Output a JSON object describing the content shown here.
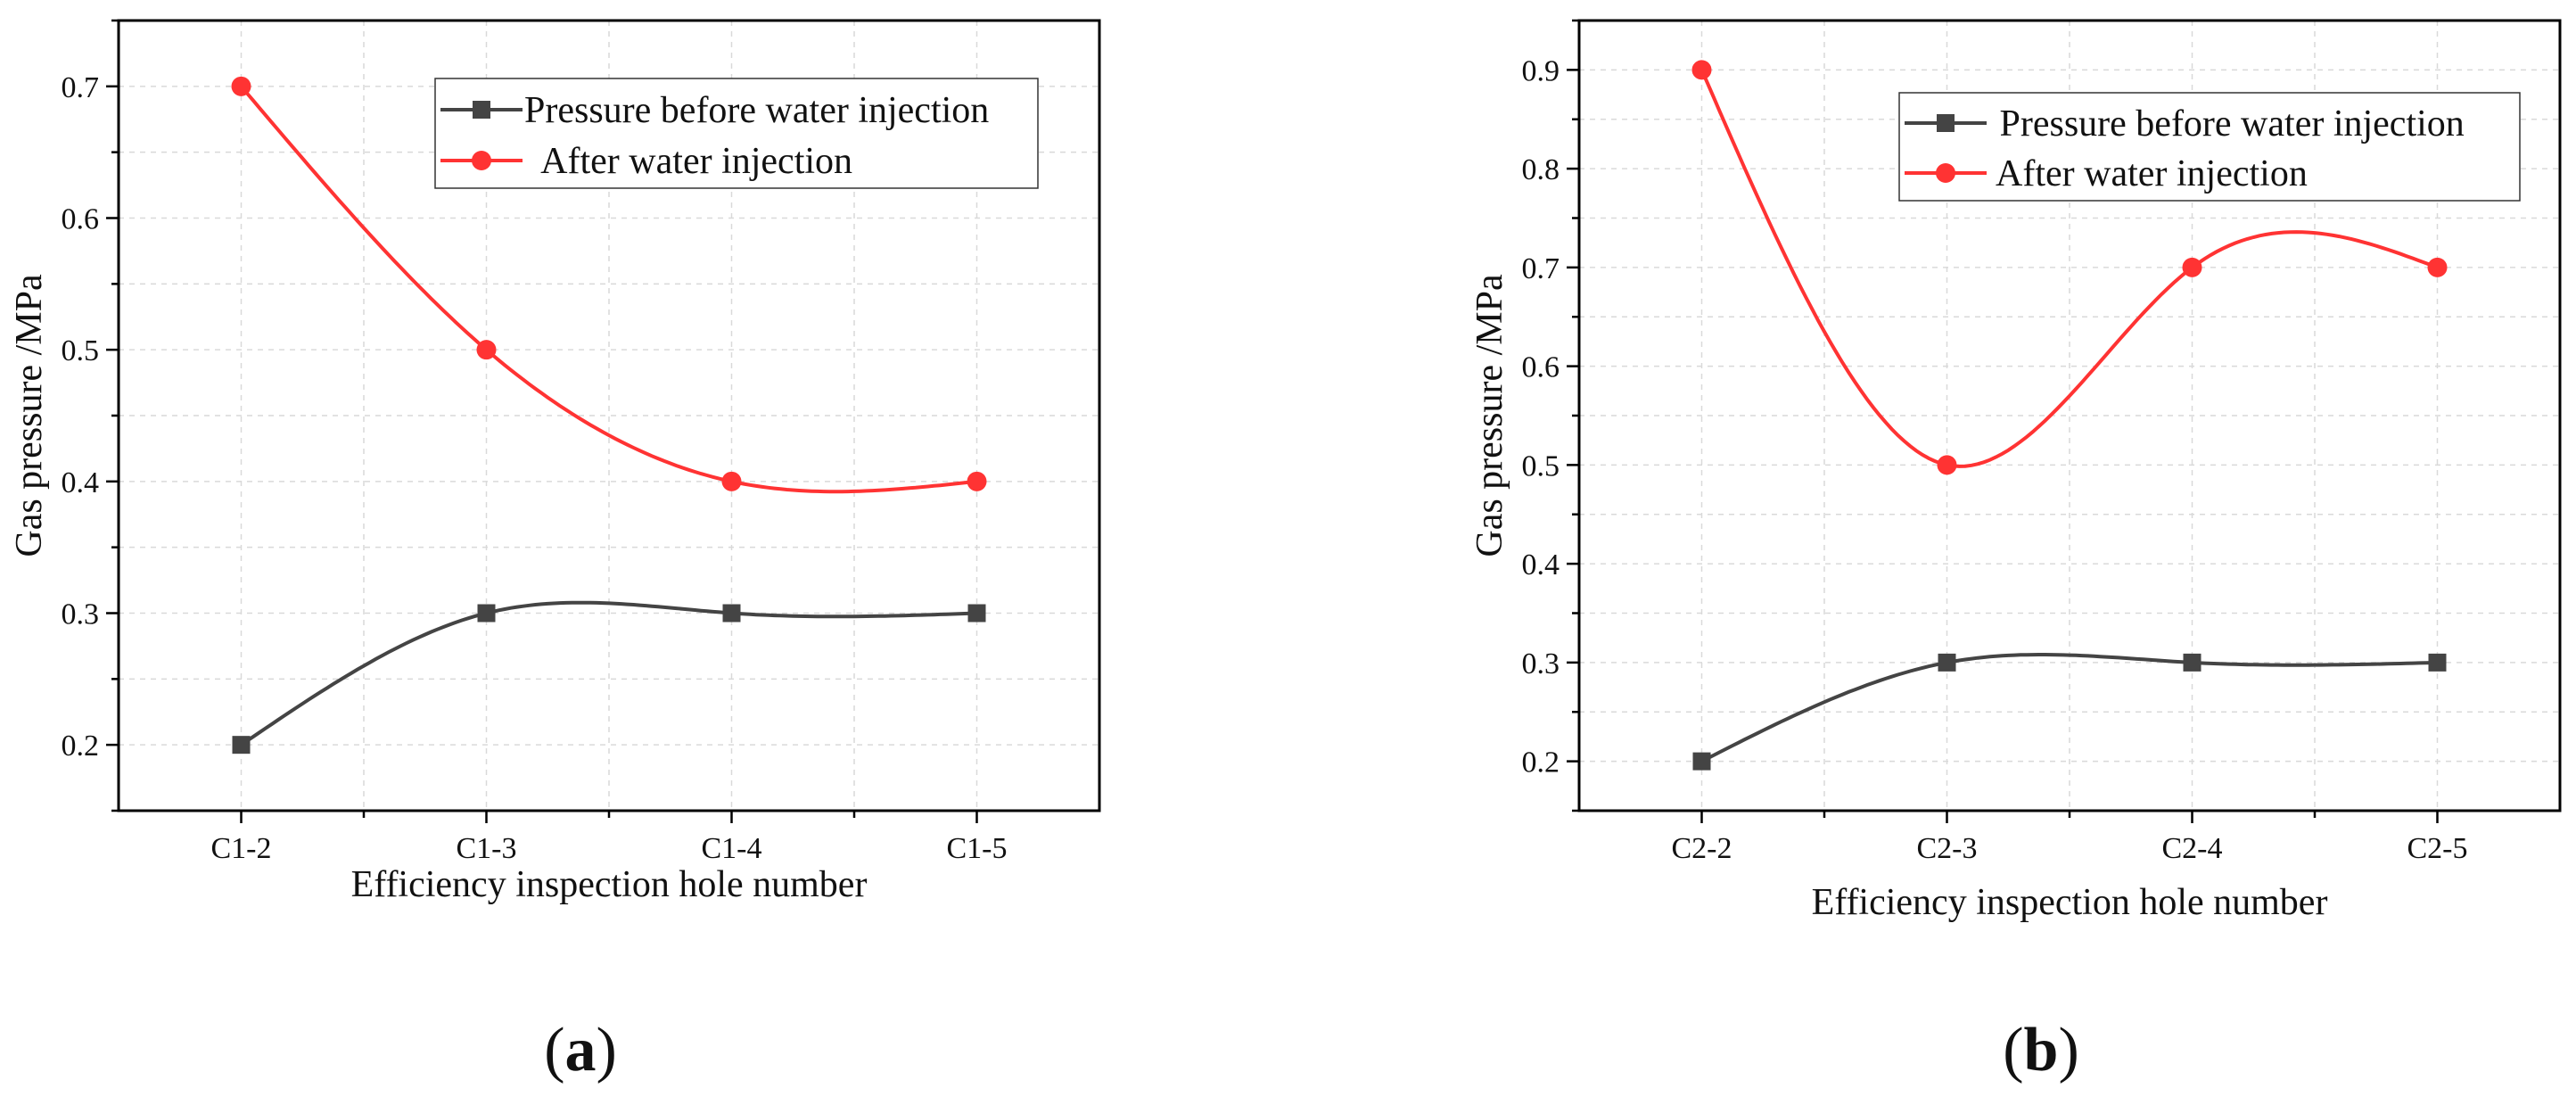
{
  "chart_data": [
    {
      "type": "line",
      "panel_label": "a",
      "categories": [
        "C1-2",
        "C1-3",
        "C1-4",
        "C1-5"
      ],
      "series": [
        {
          "name": "Pressure before water injection",
          "values": [
            0.2,
            0.3,
            0.3,
            0.3
          ],
          "color": "#444444",
          "marker": "square"
        },
        {
          "name": " After water injection",
          "values": [
            0.7,
            0.5,
            0.4,
            0.4
          ],
          "color": "#ff3333",
          "marker": "circle"
        }
      ],
      "xlabel": "Efficiency inspection hole number",
      "ylabel": "Gas pressure /MPa",
      "ylim": [
        0.15,
        0.75
      ],
      "yticks": [
        "0.2",
        "0.3",
        "0.4",
        "0.5",
        "0.6",
        "0.7"
      ],
      "grid": true,
      "legend_position": "top-right"
    },
    {
      "type": "line",
      "panel_label": "b",
      "categories": [
        "C2-2",
        "C2-3",
        "C2-4",
        "C2-5"
      ],
      "series": [
        {
          "name": " Pressure before water injection",
          "values": [
            0.2,
            0.3,
            0.3,
            0.3
          ],
          "color": "#444444",
          "marker": "square"
        },
        {
          "name": "After water injection",
          "values": [
            0.9,
            0.5,
            0.7,
            0.7
          ],
          "color": "#ff3333",
          "marker": "circle"
        }
      ],
      "xlabel": "Efficiency inspection hole number",
      "ylabel": "Gas pressure /MPa",
      "ylim": [
        0.15,
        0.95
      ],
      "yticks": [
        "0.2",
        "0.3",
        "0.4",
        "0.5",
        "0.6",
        "0.7",
        "0.8",
        "0.9"
      ],
      "grid": true,
      "legend_position": "top-right"
    }
  ]
}
